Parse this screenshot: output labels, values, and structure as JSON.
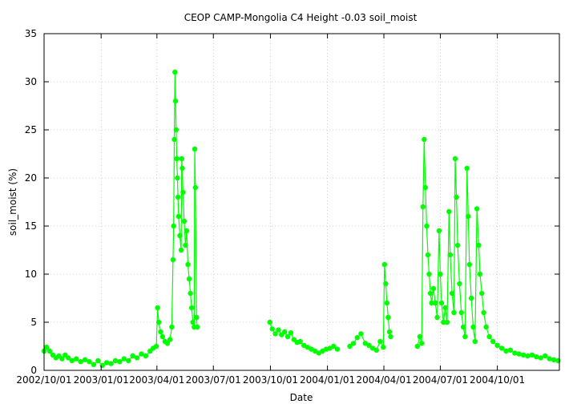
{
  "chart_data": {
    "type": "scatter",
    "title": "CEOP CAMP-Mongolia C4 Height -0.03 soil_moist",
    "xlabel": "Date",
    "ylabel": "soil_moist (%)",
    "x_type": "date",
    "xlim": [
      "2002-10-01",
      "2005-01-09"
    ],
    "ylim": [
      0,
      35
    ],
    "x_ticks": [
      "2002/10/01",
      "2003/01/01",
      "2003/04/01",
      "2003/07/01",
      "2003/10/01",
      "2004/01/01",
      "2004/04/01",
      "2004/07/01",
      "2004/10/01"
    ],
    "y_ticks": [
      0,
      5,
      10,
      15,
      20,
      25,
      30,
      35
    ],
    "grid": true,
    "legend": "none",
    "marker_color": "#00ff00",
    "series": [
      {
        "points": [
          [
            "2002-10-01",
            2.0
          ],
          [
            "2002-10-05",
            2.4
          ],
          [
            "2002-10-10",
            2.0
          ],
          [
            "2002-10-15",
            1.6
          ],
          [
            "2002-10-20",
            1.3
          ],
          [
            "2002-10-25",
            1.5
          ],
          [
            "2002-10-30",
            1.2
          ],
          [
            "2002-11-04",
            1.6
          ],
          [
            "2002-11-09",
            1.3
          ],
          [
            "2002-11-15",
            1.0
          ],
          [
            "2002-11-22",
            1.2
          ],
          [
            "2002-11-29",
            0.9
          ],
          [
            "2002-12-06",
            1.1
          ],
          [
            "2002-12-13",
            0.9
          ],
          [
            "2002-12-20",
            0.6
          ],
          [
            "2002-12-27",
            1.0
          ],
          [
            "2003-01-03",
            0.5
          ],
          [
            "2003-01-10",
            0.8
          ],
          [
            "2003-01-17",
            0.7
          ],
          [
            "2003-01-24",
            1.0
          ],
          [
            "2003-01-31",
            0.9
          ],
          [
            "2003-02-07",
            1.2
          ],
          [
            "2003-02-14",
            1.0
          ],
          [
            "2003-02-21",
            1.5
          ],
          [
            "2003-02-28",
            1.3
          ],
          [
            "2003-03-07",
            1.7
          ],
          [
            "2003-03-14",
            1.5
          ],
          [
            "2003-03-21",
            2.0
          ],
          [
            "2003-03-26",
            2.3
          ],
          [
            "2003-03-31",
            2.5
          ],
          [
            "2003-04-02",
            6.5
          ],
          [
            "2003-04-04",
            5.0
          ],
          [
            "2003-04-07",
            4.0
          ],
          [
            "2003-04-10",
            3.5
          ],
          [
            "2003-04-14",
            3.0
          ],
          [
            "2003-04-18",
            2.8
          ],
          [
            "2003-04-22",
            3.2
          ],
          [
            "2003-04-25",
            4.5
          ],
          [
            "2003-04-27",
            11.5
          ],
          [
            "2003-04-28",
            15.0
          ],
          [
            "2003-04-29",
            24.0
          ],
          [
            "2003-04-30",
            31.0
          ],
          [
            "2003-05-01",
            28.0
          ],
          [
            "2003-05-02",
            25.0
          ],
          [
            "2003-05-03",
            22.0
          ],
          [
            "2003-05-04",
            20.0
          ],
          [
            "2003-05-05",
            18.0
          ],
          [
            "2003-05-06",
            16.0
          ],
          [
            "2003-05-08",
            14.0
          ],
          [
            "2003-05-10",
            12.5
          ],
          [
            "2003-05-11",
            22.0
          ],
          [
            "2003-05-12",
            21.0
          ],
          [
            "2003-05-13",
            18.5
          ],
          [
            "2003-05-15",
            15.5
          ],
          [
            "2003-05-17",
            13.0
          ],
          [
            "2003-05-19",
            14.5
          ],
          [
            "2003-05-21",
            11.0
          ],
          [
            "2003-05-23",
            9.5
          ],
          [
            "2003-05-25",
            8.0
          ],
          [
            "2003-05-27",
            6.5
          ],
          [
            "2003-05-29",
            5.0
          ],
          [
            "2003-05-31",
            4.5
          ],
          [
            "2003-06-01",
            23.0
          ],
          [
            "2003-06-02",
            19.0
          ],
          [
            "2003-06-04",
            5.5
          ],
          [
            "2003-06-05",
            4.5
          ],
          [
            "2003-09-30",
            5.0
          ],
          [
            "2003-10-04",
            4.3
          ],
          [
            "2003-10-09",
            3.8
          ],
          [
            "2003-10-14",
            4.2
          ],
          [
            "2003-10-19",
            3.7
          ],
          [
            "2003-10-24",
            4.0
          ],
          [
            "2003-10-29",
            3.5
          ],
          [
            "2003-11-03",
            3.9
          ],
          [
            "2003-11-08",
            3.2
          ],
          [
            "2003-11-13",
            2.9
          ],
          [
            "2003-11-18",
            3.0
          ],
          [
            "2003-11-24",
            2.6
          ],
          [
            "2003-11-30",
            2.4
          ],
          [
            "2003-12-06",
            2.2
          ],
          [
            "2003-12-12",
            2.0
          ],
          [
            "2003-12-18",
            1.8
          ],
          [
            "2003-12-24",
            2.0
          ],
          [
            "2003-12-30",
            2.2
          ],
          [
            "2004-01-05",
            2.3
          ],
          [
            "2004-01-11",
            2.5
          ],
          [
            "2004-01-17",
            2.2
          ],
          [
            "2004-02-06",
            2.5
          ],
          [
            "2004-02-12",
            2.8
          ],
          [
            "2004-02-18",
            3.4
          ],
          [
            "2004-02-24",
            3.8
          ],
          [
            "2004-03-02",
            2.8
          ],
          [
            "2004-03-08",
            2.6
          ],
          [
            "2004-03-14",
            2.3
          ],
          [
            "2004-03-20",
            2.1
          ],
          [
            "2004-03-26",
            3.0
          ],
          [
            "2004-03-31",
            2.4
          ],
          [
            "2004-04-02",
            11.0
          ],
          [
            "2004-04-04",
            9.0
          ],
          [
            "2004-04-06",
            7.0
          ],
          [
            "2004-04-08",
            5.5
          ],
          [
            "2004-04-10",
            4.0
          ],
          [
            "2004-04-12",
            3.5
          ],
          [
            "2004-05-25",
            2.5
          ],
          [
            "2004-05-29",
            3.5
          ],
          [
            "2004-06-01",
            2.8
          ],
          [
            "2004-06-03",
            17.0
          ],
          [
            "2004-06-05",
            24.0
          ],
          [
            "2004-06-07",
            19.0
          ],
          [
            "2004-06-09",
            15.0
          ],
          [
            "2004-06-11",
            12.0
          ],
          [
            "2004-06-13",
            10.0
          ],
          [
            "2004-06-15",
            8.0
          ],
          [
            "2004-06-17",
            7.0
          ],
          [
            "2004-06-20",
            8.5
          ],
          [
            "2004-06-23",
            7.0
          ],
          [
            "2004-06-26",
            5.5
          ],
          [
            "2004-06-29",
            14.5
          ],
          [
            "2004-07-01",
            10.0
          ],
          [
            "2004-07-03",
            7.0
          ],
          [
            "2004-07-06",
            5.0
          ],
          [
            "2004-07-09",
            6.5
          ],
          [
            "2004-07-12",
            5.0
          ],
          [
            "2004-07-15",
            16.5
          ],
          [
            "2004-07-17",
            12.0
          ],
          [
            "2004-07-20",
            8.0
          ],
          [
            "2004-07-23",
            6.0
          ],
          [
            "2004-07-25",
            22.0
          ],
          [
            "2004-07-27",
            18.0
          ],
          [
            "2004-07-29",
            13.0
          ],
          [
            "2004-08-01",
            9.0
          ],
          [
            "2004-08-04",
            6.0
          ],
          [
            "2004-08-07",
            4.5
          ],
          [
            "2004-08-10",
            3.5
          ],
          [
            "2004-08-13",
            21.0
          ],
          [
            "2004-08-15",
            16.0
          ],
          [
            "2004-08-17",
            11.0
          ],
          [
            "2004-08-20",
            7.5
          ],
          [
            "2004-08-23",
            4.5
          ],
          [
            "2004-08-26",
            3.0
          ],
          [
            "2004-08-29",
            16.8
          ],
          [
            "2004-09-01",
            13.0
          ],
          [
            "2004-09-03",
            10.0
          ],
          [
            "2004-09-06",
            8.0
          ],
          [
            "2004-09-09",
            6.0
          ],
          [
            "2004-09-13",
            4.5
          ],
          [
            "2004-09-18",
            3.5
          ],
          [
            "2004-09-24",
            3.0
          ],
          [
            "2004-10-01",
            2.6
          ],
          [
            "2004-10-08",
            2.3
          ],
          [
            "2004-10-15",
            2.0
          ],
          [
            "2004-10-22",
            2.1
          ],
          [
            "2004-10-29",
            1.8
          ],
          [
            "2004-11-05",
            1.7
          ],
          [
            "2004-11-12",
            1.6
          ],
          [
            "2004-11-19",
            1.5
          ],
          [
            "2004-11-26",
            1.6
          ],
          [
            "2004-12-03",
            1.4
          ],
          [
            "2004-12-10",
            1.3
          ],
          [
            "2004-12-17",
            1.5
          ],
          [
            "2004-12-24",
            1.2
          ],
          [
            "2004-12-31",
            1.1
          ],
          [
            "2005-01-07",
            1.0
          ]
        ]
      }
    ]
  }
}
